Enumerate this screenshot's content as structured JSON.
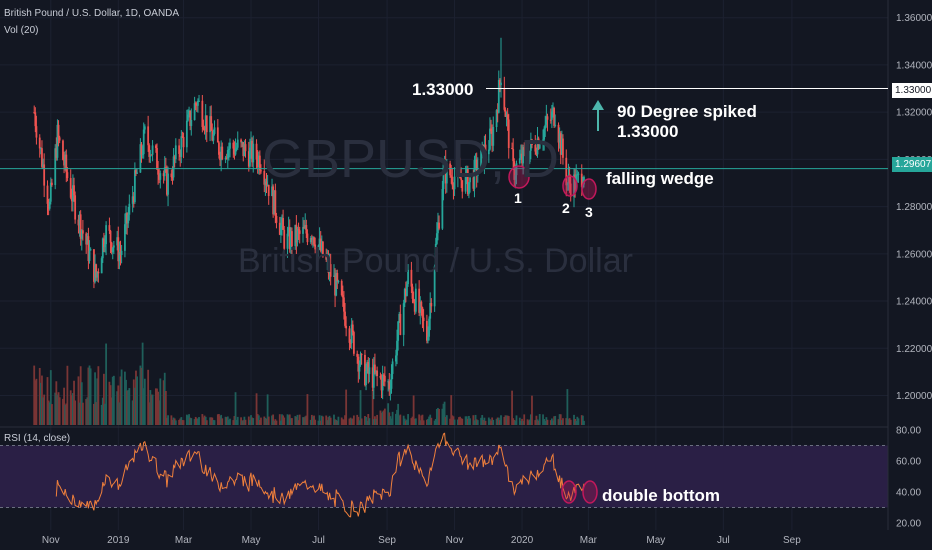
{
  "header": {
    "symbol_line": "British Pound / U.S. Dollar, 1D, OANDA",
    "volume_label": "Vol (20)",
    "rsi_label": "RSI (14, close)"
  },
  "watermark": {
    "ticker": "GBPUSD, D",
    "name": "British Pound / U.S. Dollar"
  },
  "annotations": {
    "level_label": "1.33000",
    "spike_line1": "90 Degree spiked",
    "spike_line2": "1.33000",
    "pattern": "falling wedge",
    "rsi_pattern": "double bottom",
    "markers": [
      "1",
      "2",
      "3"
    ]
  },
  "price_tags": {
    "level": "1.33000",
    "last": "1.29607"
  },
  "colors": {
    "background": "#131722",
    "up": "#26a69a",
    "down": "#ef5350",
    "rsi_line": "#f0803c",
    "rsi_band": "#2a1f45",
    "marker": "#c2185b",
    "last_price": "#26a69a"
  },
  "chart_data": [
    {
      "type": "candlestick",
      "title": "British Pound / U.S. Dollar, 1D, OANDA",
      "x_ticks": [
        "Nov",
        "2019",
        "Mar",
        "May",
        "Jul",
        "Sep",
        "Nov",
        "2020",
        "Mar",
        "May",
        "Jul",
        "Sep"
      ],
      "y_ticks": [
        "1.36000",
        "1.34000",
        "1.32000",
        "1.30000",
        "1.28000",
        "1.26000",
        "1.24000",
        "1.22000",
        "1.20000"
      ],
      "ylim": [
        1.1875,
        1.3675
      ],
      "horizontal_lines": [
        1.33,
        1.29607
      ],
      "anchor_closes": [
        [
          "2018-10-17",
          1.32
        ],
        [
          "2018-10-31",
          1.28
        ],
        [
          "2018-11-07",
          1.31
        ],
        [
          "2018-11-20",
          1.285
        ],
        [
          "2018-12-12",
          1.25
        ],
        [
          "2018-12-20",
          1.27
        ],
        [
          "2019-01-03",
          1.26
        ],
        [
          "2019-01-25",
          1.31
        ],
        [
          "2019-02-14",
          1.29
        ],
        [
          "2019-03-13",
          1.325
        ],
        [
          "2019-04-01",
          1.305
        ],
        [
          "2019-04-20",
          1.305
        ],
        [
          "2019-05-10",
          1.3
        ],
        [
          "2019-06-01",
          1.265
        ],
        [
          "2019-06-25",
          1.27
        ],
        [
          "2019-07-18",
          1.245
        ],
        [
          "2019-08-10",
          1.21
        ],
        [
          "2019-09-03",
          1.205
        ],
        [
          "2019-09-20",
          1.25
        ],
        [
          "2019-10-07",
          1.225
        ],
        [
          "2019-10-22",
          1.295
        ],
        [
          "2019-11-15",
          1.29
        ],
        [
          "2019-12-05",
          1.31
        ],
        [
          "2019-12-13",
          1.335
        ],
        [
          "2019-12-24",
          1.295
        ],
        [
          "2020-01-10",
          1.305
        ],
        [
          "2020-01-31",
          1.32
        ],
        [
          "2020-02-11",
          1.29
        ],
        [
          "2020-02-20",
          1.29
        ],
        [
          "2020-02-26",
          1.296
        ]
      ]
    },
    {
      "type": "bar",
      "title": "Vol (20)"
    },
    {
      "type": "line",
      "title": "RSI (14, close)",
      "y_ticks": [
        "80.00",
        "60.00",
        "40.00",
        "20.00"
      ],
      "ylim": [
        20,
        80
      ],
      "band": [
        30,
        70
      ]
    }
  ]
}
